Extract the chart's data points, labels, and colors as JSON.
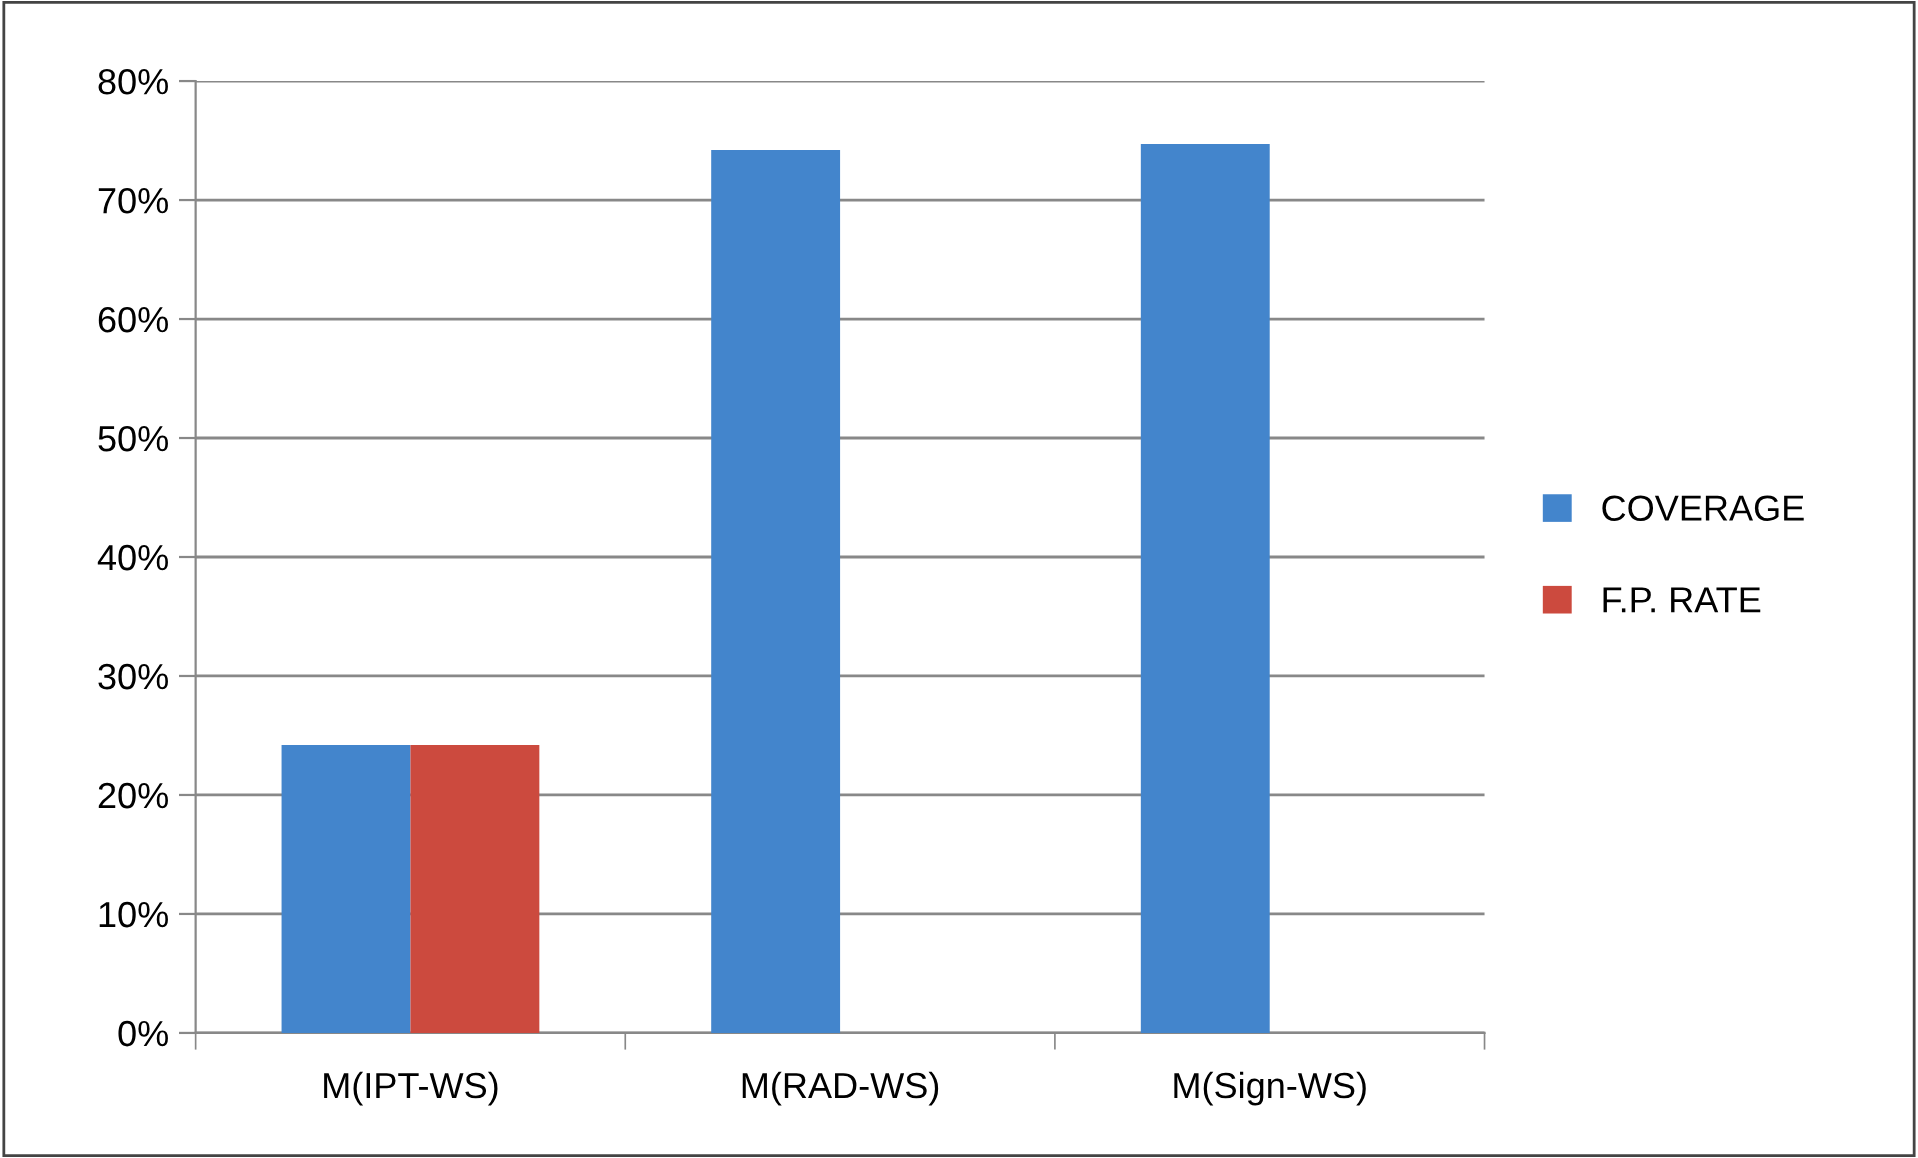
{
  "chart_data": {
    "type": "bar",
    "categories": [
      "M(IPT-WS)",
      "M(RAD-WS)",
      "M(Sign-WS)"
    ],
    "series": [
      {
        "name": "COVERAGE",
        "color": "#4385cc",
        "values": [
          24.2,
          74.2,
          74.7
        ]
      },
      {
        "name": "F.P. RATE",
        "color": "#cc4a3e",
        "values": [
          24.2,
          0,
          0
        ]
      }
    ],
    "ylim": [
      0,
      80
    ],
    "yticks": [
      {
        "value": 0,
        "label": "0%"
      },
      {
        "value": 10,
        "label": "10%"
      },
      {
        "value": 20,
        "label": "20%"
      },
      {
        "value": 30,
        "label": "30%"
      },
      {
        "value": 40,
        "label": "40%"
      },
      {
        "value": 50,
        "label": "50%"
      },
      {
        "value": 60,
        "label": "60%"
      },
      {
        "value": 70,
        "label": "70%"
      },
      {
        "value": 80,
        "label": "80%"
      }
    ],
    "grid": "y",
    "legend": "right"
  }
}
